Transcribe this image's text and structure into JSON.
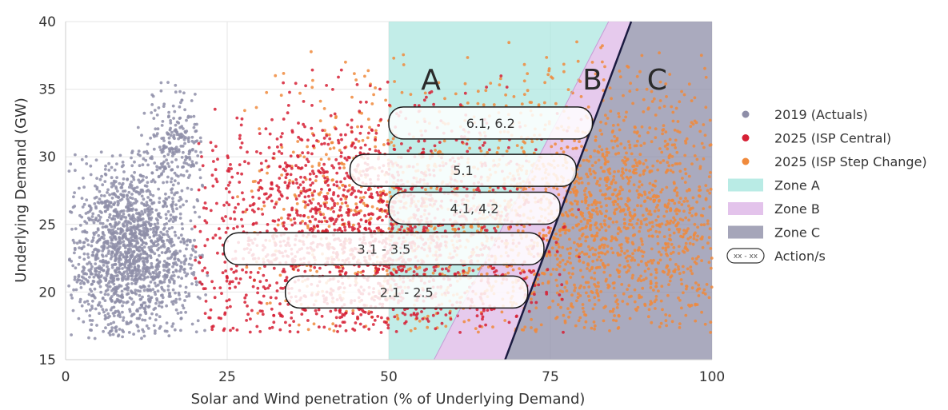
{
  "chart_data": {
    "type": "scatter",
    "xlabel": "Solar and Wind penetration (% of Underlying Demand)",
    "ylabel": "Underlying Demand (GW)",
    "xlim": [
      0,
      100
    ],
    "ylim": [
      15,
      40
    ],
    "xticks": [
      "0",
      "25",
      "50",
      "75",
      "100"
    ],
    "yticks": [
      "15",
      "20",
      "25",
      "30",
      "35",
      "40"
    ],
    "grid": true,
    "legend_position": "right",
    "series": [
      {
        "name": "2019 (Actuals)",
        "color": "#8e8ea8",
        "clusters": [
          {
            "x_range": [
              0.5,
              22
            ],
            "y_range": [
              16.5,
              30.5
            ],
            "center": [
              10,
              23
            ],
            "count": 1600
          },
          {
            "x_range": [
              10,
              21
            ],
            "y_range": [
              28,
              36
            ],
            "center": [
              17,
              31
            ],
            "count": 200
          }
        ]
      },
      {
        "name": "2025 (ISP Central)",
        "color": "#d62035",
        "clusters": [
          {
            "x_range": [
              20,
              80
            ],
            "y_range": [
              17,
              36.5
            ],
            "center": [
              45,
              24
            ],
            "count": 1800
          }
        ]
      },
      {
        "name": "2025 (ISP Step Change)",
        "color": "#f08a3c",
        "clusters": [
          {
            "x_range": [
              40,
              100
            ],
            "y_range": [
              17,
              38.5
            ],
            "center": [
              85,
              25.5
            ],
            "count": 1700
          },
          {
            "x_range": [
              25,
              75
            ],
            "y_range": [
              17,
              38.5
            ],
            "center": [
              50,
              25
            ],
            "count": 600
          }
        ]
      }
    ],
    "zones": [
      {
        "name": "Zone A",
        "label": "A",
        "color": "#a8e6de",
        "boundary_x": [
          [
            50,
            15
          ],
          [
            50,
            40
          ],
          [
            84,
            40
          ],
          [
            57,
            15
          ]
        ]
      },
      {
        "name": "Zone B",
        "label": "B",
        "color": "#dcb4e6",
        "boundary_x": [
          [
            57,
            15
          ],
          [
            84,
            40
          ],
          [
            87.5,
            40
          ],
          [
            68,
            15
          ]
        ]
      },
      {
        "name": "Zone C",
        "label": "C",
        "color": "#8e8ea8",
        "boundary_x": [
          [
            68,
            15
          ],
          [
            87.5,
            40
          ],
          [
            100,
            40
          ],
          [
            100,
            15
          ]
        ]
      }
    ],
    "actions": [
      {
        "label": "6.1, 6.2",
        "x_range": [
          50,
          81.5
        ],
        "y": 32.5
      },
      {
        "label": "5.1",
        "x_range": [
          44,
          79
        ],
        "y": 29
      },
      {
        "label": "4.1, 4.2",
        "x_range": [
          50,
          76.5
        ],
        "y": 26.2
      },
      {
        "label": "3.1 - 3.5",
        "x_range": [
          24.5,
          74
        ],
        "y": 23.2
      },
      {
        "label": "2.1 - 2.5",
        "x_range": [
          34,
          71.5
        ],
        "y": 20
      }
    ],
    "legend": [
      {
        "label": "2019 (Actuals)",
        "kind": "marker",
        "color": "#8e8ea8"
      },
      {
        "label": "2025 (ISP Central)",
        "kind": "marker",
        "color": "#d62035"
      },
      {
        "label": "2025 (ISP Step Change)",
        "kind": "marker",
        "color": "#f08a3c"
      },
      {
        "label": "Zone A",
        "kind": "patch",
        "color": "#a8e6de"
      },
      {
        "label": "Zone B",
        "kind": "patch",
        "color": "#dcb4e6"
      },
      {
        "label": "Zone C",
        "kind": "patch",
        "color": "#8e8ea8"
      },
      {
        "label": "Action/s",
        "kind": "action",
        "symbol": "xx - xx"
      }
    ]
  }
}
